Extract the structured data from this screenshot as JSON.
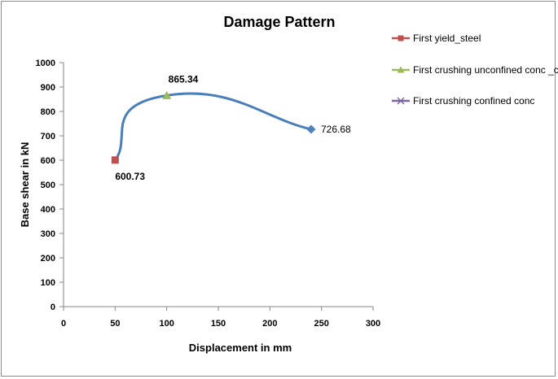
{
  "chart_data": {
    "type": "line",
    "title": "Damage Pattern",
    "xlabel": "Displacement in mm",
    "ylabel": "Base shear in kN",
    "xlim": [
      0,
      300
    ],
    "ylim": [
      0,
      1000
    ],
    "x_ticks": [
      0,
      50,
      100,
      150,
      200,
      250,
      300
    ],
    "y_ticks": [
      0,
      100,
      200,
      300,
      400,
      500,
      600,
      700,
      800,
      900,
      1000
    ],
    "grid": false,
    "legend_position": "right",
    "curve": {
      "color": "#4a7ebb",
      "points": [
        {
          "x": 50,
          "y": 600.73
        },
        {
          "x": 100,
          "y": 865.34
        },
        {
          "x": 240,
          "y": 726.68
        }
      ]
    },
    "series": [
      {
        "name": "First yield_steel",
        "x": 50,
        "y": 600.73,
        "label": "600.73",
        "color": "#c0504d",
        "marker": "square",
        "label_bold": true
      },
      {
        "name": "First crushing unconfined conc _col",
        "x": 100,
        "y": 865.34,
        "label": "865.34",
        "color": "#9bbb59",
        "marker": "triangle",
        "label_bold": true
      },
      {
        "name": "First crushing confined conc",
        "x": 240,
        "y": 726.68,
        "label": "726.68",
        "color": "#8064a2",
        "marker": "diamond",
        "plot_color": "#4f81bd",
        "label_bold": false
      }
    ]
  }
}
